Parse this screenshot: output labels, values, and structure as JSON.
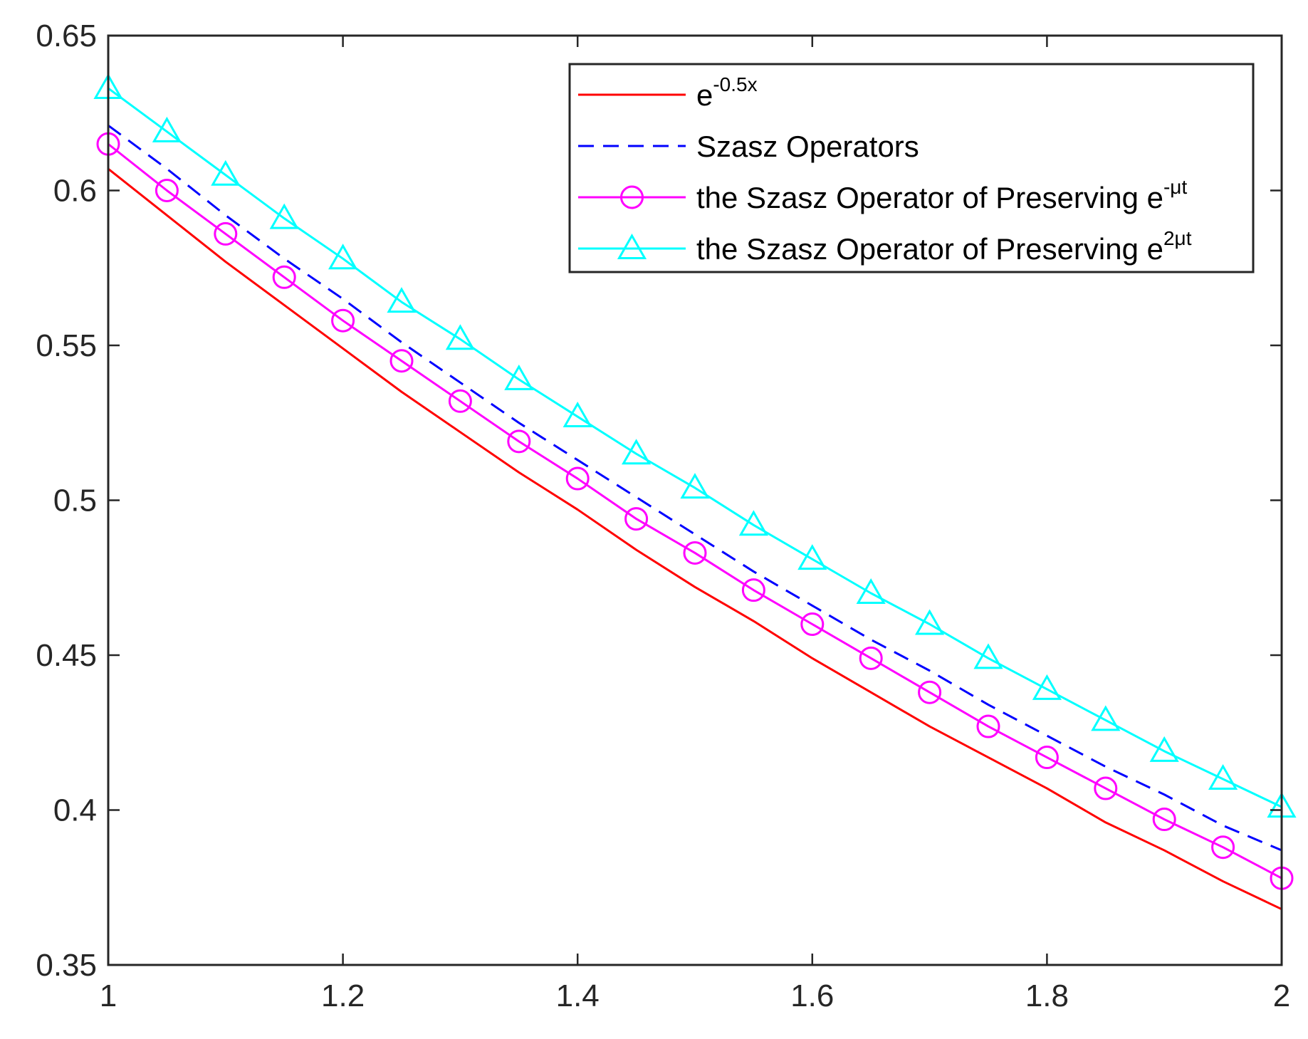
{
  "chart_data": {
    "type": "line",
    "title": "",
    "xlabel": "",
    "ylabel": "",
    "xlim": [
      1,
      2
    ],
    "ylim": [
      0.35,
      0.65
    ],
    "xticks": [
      1,
      1.2,
      1.4,
      1.6,
      1.8,
      2
    ],
    "xtick_labels": [
      "1",
      "1.2",
      "1.4",
      "1.6",
      "1.8",
      "2"
    ],
    "yticks": [
      0.35,
      0.4,
      0.45,
      0.5,
      0.55,
      0.6,
      0.65
    ],
    "ytick_labels": [
      "0.35",
      "0.4",
      "0.45",
      "0.5",
      "0.55",
      "0.6",
      "0.65"
    ],
    "grid": false,
    "legend_position": "top-right",
    "x": [
      1,
      1.05,
      1.1,
      1.15,
      1.2,
      1.25,
      1.3,
      1.35,
      1.4,
      1.45,
      1.5,
      1.55,
      1.6,
      1.65,
      1.7,
      1.75,
      1.8,
      1.85,
      1.9,
      1.95,
      2
    ],
    "series": [
      {
        "legend": {
          "base": "e",
          "sup": "-0.5x"
        },
        "color": "#ff0000",
        "line_style": "solid",
        "marker": "none",
        "values": [
          0.607,
          0.592,
          0.577,
          0.563,
          0.549,
          0.535,
          0.522,
          0.509,
          0.497,
          0.484,
          0.472,
          0.461,
          0.449,
          0.438,
          0.427,
          0.417,
          0.407,
          0.396,
          0.387,
          0.377,
          0.368
        ]
      },
      {
        "legend": {
          "base": "Szasz Operators",
          "sup": ""
        },
        "color": "#0000ff",
        "line_style": "dashed",
        "marker": "none",
        "values": [
          0.621,
          0.607,
          0.592,
          0.578,
          0.565,
          0.551,
          0.538,
          0.525,
          0.513,
          0.501,
          0.489,
          0.477,
          0.466,
          0.455,
          0.445,
          0.434,
          0.424,
          0.414,
          0.405,
          0.395,
          0.387
        ]
      },
      {
        "legend": {
          "base": "the Szasz Operator of Preserving e",
          "sup": "-μt"
        },
        "color": "#ff00ff",
        "line_style": "solid",
        "marker": "circle",
        "values": [
          0.615,
          0.6,
          0.586,
          0.572,
          0.558,
          0.545,
          0.532,
          0.519,
          0.507,
          0.494,
          0.483,
          0.471,
          0.46,
          0.449,
          0.438,
          0.427,
          0.417,
          0.407,
          0.397,
          0.388,
          0.378
        ]
      },
      {
        "legend": {
          "base": "the Szasz Operator of Preserving e",
          "sup": "2μt"
        },
        "color": "#00ffff",
        "line_style": "solid",
        "marker": "triangle",
        "values": [
          0.633,
          0.619,
          0.605,
          0.591,
          0.578,
          0.564,
          0.552,
          0.539,
          0.527,
          0.515,
          0.504,
          0.492,
          0.481,
          0.47,
          0.46,
          0.449,
          0.439,
          0.429,
          0.419,
          0.41,
          0.401
        ]
      }
    ]
  }
}
